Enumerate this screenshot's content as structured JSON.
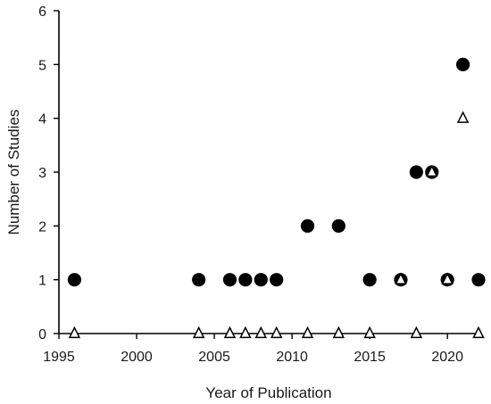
{
  "chart_data": {
    "type": "scatter",
    "xlabel": "Year of Publication",
    "ylabel": "Number of Studies",
    "xlim": [
      1995,
      2022
    ],
    "ylim": [
      0,
      6
    ],
    "xticks": [
      1995,
      2000,
      2005,
      2010,
      2015,
      2020
    ],
    "yticks": [
      0,
      1,
      2,
      3,
      4,
      5,
      6
    ],
    "grid": false,
    "legend": "none",
    "series": [
      {
        "marker": "filled-circle",
        "color": "#000000",
        "points": [
          {
            "x": 1996,
            "y": 1
          },
          {
            "x": 2004,
            "y": 1
          },
          {
            "x": 2006,
            "y": 1
          },
          {
            "x": 2007,
            "y": 1
          },
          {
            "x": 2008,
            "y": 1
          },
          {
            "x": 2009,
            "y": 1
          },
          {
            "x": 2011,
            "y": 2
          },
          {
            "x": 2013,
            "y": 2
          },
          {
            "x": 2015,
            "y": 1
          },
          {
            "x": 2017,
            "y": 1
          },
          {
            "x": 2018,
            "y": 3
          },
          {
            "x": 2019,
            "y": 3
          },
          {
            "x": 2020,
            "y": 1
          },
          {
            "x": 2021,
            "y": 5
          },
          {
            "x": 2022,
            "y": 1
          }
        ]
      },
      {
        "marker": "open-triangle",
        "color": "#000000",
        "points": [
          {
            "x": 1996,
            "y": 0
          },
          {
            "x": 2004,
            "y": 0
          },
          {
            "x": 2006,
            "y": 0
          },
          {
            "x": 2007,
            "y": 0
          },
          {
            "x": 2008,
            "y": 0
          },
          {
            "x": 2009,
            "y": 0
          },
          {
            "x": 2011,
            "y": 0
          },
          {
            "x": 2013,
            "y": 0
          },
          {
            "x": 2015,
            "y": 0
          },
          {
            "x": 2017,
            "y": 1
          },
          {
            "x": 2018,
            "y": 0
          },
          {
            "x": 2019,
            "y": 3
          },
          {
            "x": 2020,
            "y": 1
          },
          {
            "x": 2021,
            "y": 4
          },
          {
            "x": 2022,
            "y": 0
          }
        ]
      }
    ]
  }
}
